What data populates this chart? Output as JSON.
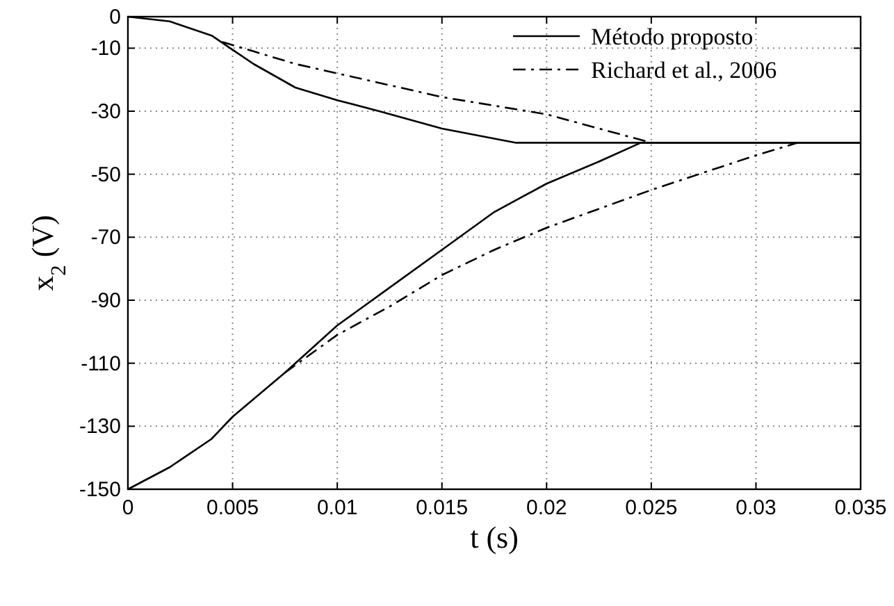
{
  "chart_data": {
    "type": "line",
    "xlabel": "t (s)",
    "ylabel": "x$_{2}$ (V)",
    "xlim": [
      0,
      0.035
    ],
    "ylim": [
      -150,
      0
    ],
    "xticks": [
      0,
      0.005,
      0.01,
      0.015,
      0.02,
      0.025,
      0.03,
      0.035
    ],
    "yticks": [
      0,
      -10,
      -30,
      -50,
      -70,
      -90,
      -110,
      -130,
      -150
    ],
    "grid": true,
    "legend": "top right",
    "marker": "none",
    "series": [
      {
        "name": "Método proposto",
        "color": "#000000",
        "line_style": "solid",
        "x": [
          0,
          0.002,
          0.004,
          0.005,
          0.006,
          0.008,
          0.01,
          0.012,
          0.015,
          0.0185,
          0.035
        ],
        "values": [
          0,
          -1.5,
          -6,
          -10.5,
          -15,
          -22.5,
          -26.5,
          -30,
          -35.5,
          -40,
          -40
        ]
      },
      {
        "name": "Richard et al., 2006",
        "color": "#000000",
        "line_style": "dashdot",
        "x": [
          0.0045,
          0.006,
          0.008,
          0.01,
          0.015,
          0.02,
          0.025
        ],
        "values": [
          -8,
          -11,
          -15,
          -18,
          -25.5,
          -31,
          -40
        ]
      },
      {
        "color": "#000000",
        "line_style": "solid",
        "x": [
          0,
          0.002,
          0.004,
          0.005,
          0.0075,
          0.01,
          0.0125,
          0.015,
          0.0175,
          0.02,
          0.0225,
          0.0245,
          0.035
        ],
        "values": [
          -150,
          -143,
          -134,
          -127,
          -113,
          -98,
          -86,
          -74,
          -62,
          -53,
          -46,
          -40,
          -40
        ]
      },
      {
        "color": "#000000",
        "line_style": "dashdot",
        "x": [
          0.0075,
          0.01,
          0.0125,
          0.015,
          0.0175,
          0.02,
          0.025,
          0.03,
          0.032
        ],
        "values": [
          -113,
          -101,
          -92,
          -82,
          -74,
          -67,
          -55,
          -44,
          -40
        ]
      }
    ]
  }
}
